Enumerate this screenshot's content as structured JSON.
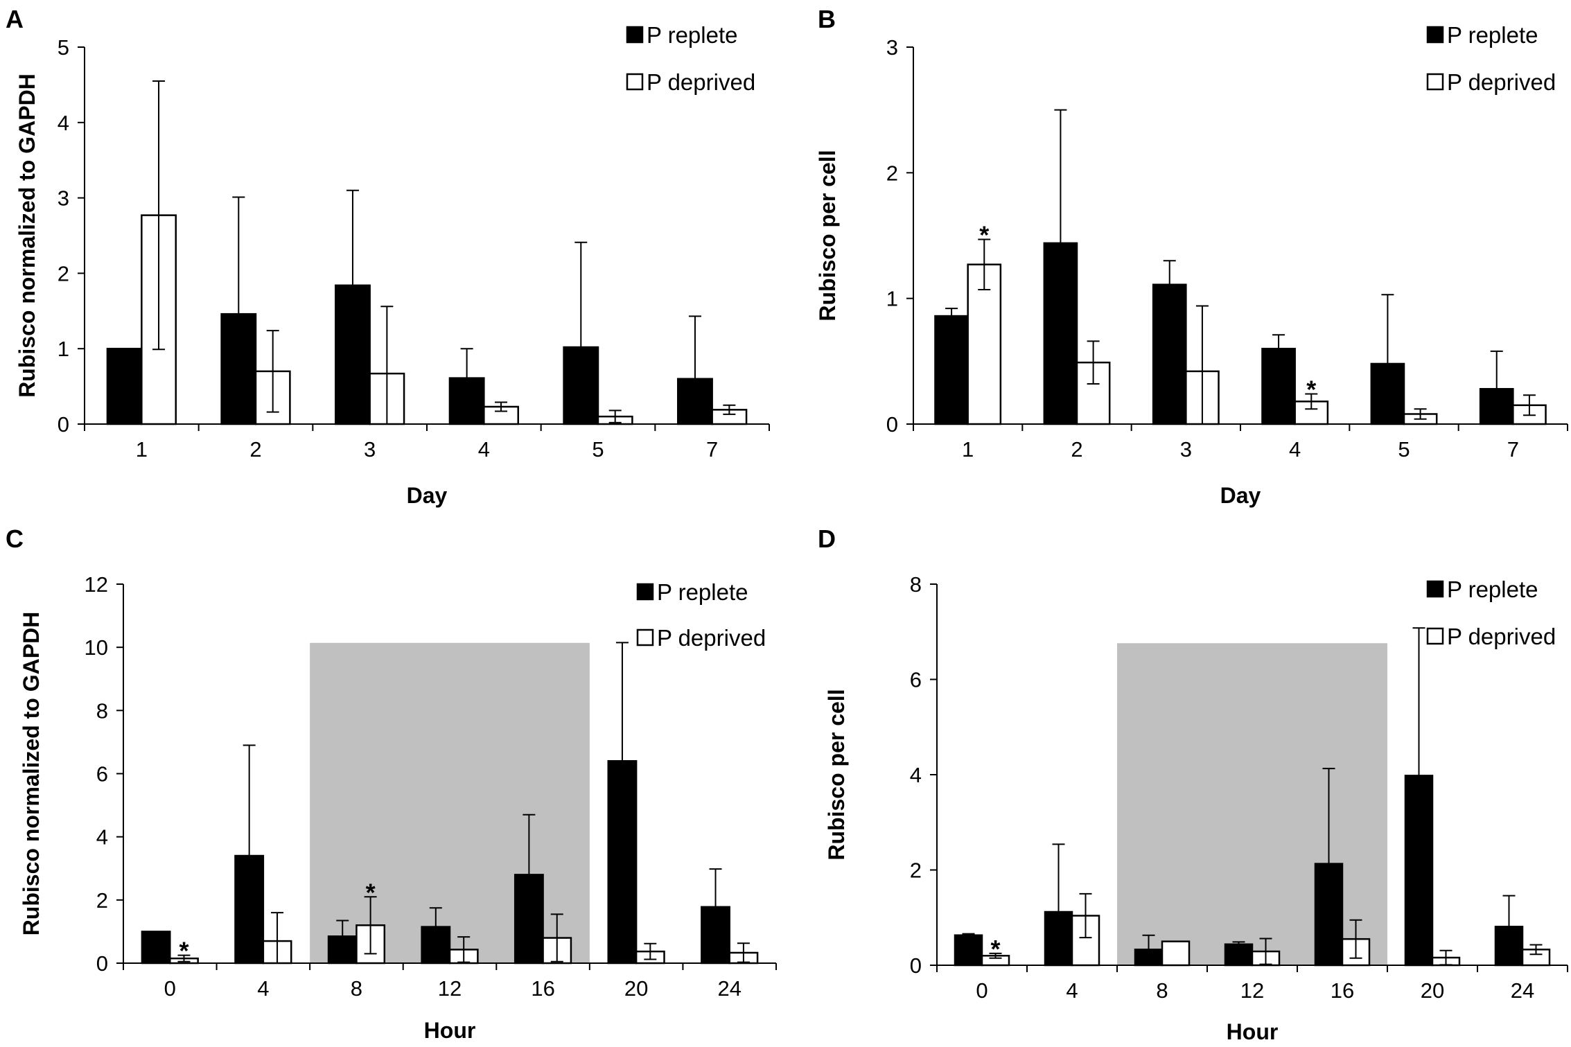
{
  "chart_data": [
    {
      "panel": "A",
      "type": "bar",
      "xlabel": "Day",
      "ylabel": "Rubisco normalized to GAPDH",
      "ylim": [
        0,
        5
      ],
      "yticks": [
        "0",
        "1",
        "2",
        "3",
        "4",
        "5"
      ],
      "categories": [
        "1",
        "2",
        "3",
        "4",
        "5",
        "7"
      ],
      "legend_position": "top-right",
      "shaded_categories": [],
      "series": [
        {
          "name": "P replete",
          "fill": "#000000",
          "values": [
            1.0,
            1.46,
            1.84,
            0.61,
            1.02,
            0.6
          ],
          "errors": [
            0,
            1.55,
            1.26,
            0.39,
            1.39,
            0.83
          ],
          "significant": [
            false,
            false,
            false,
            false,
            false,
            false
          ]
        },
        {
          "name": "P deprived",
          "fill": "#ffffff",
          "values": [
            2.77,
            0.7,
            0.67,
            0.23,
            0.1,
            0.19
          ],
          "errors": [
            1.78,
            0.54,
            0.89,
            0.06,
            0.08,
            0.06
          ],
          "significant": [
            false,
            false,
            false,
            false,
            false,
            false
          ]
        }
      ]
    },
    {
      "panel": "B",
      "type": "bar",
      "xlabel": "Day",
      "ylabel": "Rubisco per cell",
      "ylim": [
        0,
        3
      ],
      "yticks": [
        "0",
        "1",
        "2",
        "3"
      ],
      "categories": [
        "1",
        "2",
        "3",
        "4",
        "5",
        "7"
      ],
      "legend_position": "top-right",
      "shaded_categories": [],
      "series": [
        {
          "name": "P replete",
          "fill": "#000000",
          "values": [
            0.86,
            1.44,
            1.11,
            0.6,
            0.48,
            0.28
          ],
          "errors": [
            0.06,
            1.06,
            0.19,
            0.11,
            0.55,
            0.3
          ],
          "significant": [
            false,
            false,
            false,
            false,
            false,
            false
          ]
        },
        {
          "name": "P deprived",
          "fill": "#ffffff",
          "values": [
            1.27,
            0.49,
            0.42,
            0.18,
            0.08,
            0.15
          ],
          "errors": [
            0.2,
            0.17,
            0.52,
            0.06,
            0.04,
            0.08
          ],
          "significant": [
            true,
            false,
            false,
            true,
            false,
            false
          ]
        }
      ]
    },
    {
      "panel": "C",
      "type": "bar",
      "xlabel": "Hour",
      "ylabel": "Rubisco normalized to GAPDH",
      "ylim": [
        0,
        12
      ],
      "yticks": [
        "0",
        "2",
        "4",
        "6",
        "8",
        "10",
        "12"
      ],
      "categories": [
        "0",
        "4",
        "8",
        "12",
        "16",
        "20",
        "24"
      ],
      "legend_position": "top-right",
      "shaded_categories": [
        "8",
        "12",
        "16"
      ],
      "series": [
        {
          "name": "P replete",
          "fill": "#000000",
          "values": [
            1.0,
            3.4,
            0.85,
            1.15,
            2.8,
            6.4,
            1.78
          ],
          "errors": [
            0,
            3.5,
            0.5,
            0.6,
            1.9,
            3.75,
            1.2
          ],
          "significant": [
            false,
            false,
            false,
            false,
            false,
            false,
            false
          ]
        },
        {
          "name": "P deprived",
          "fill": "#ffffff",
          "values": [
            0.15,
            0.7,
            1.2,
            0.43,
            0.8,
            0.37,
            0.33
          ],
          "errors": [
            0.1,
            0.9,
            0.9,
            0.4,
            0.75,
            0.25,
            0.3
          ],
          "significant": [
            true,
            false,
            true,
            false,
            false,
            false,
            false
          ]
        }
      ]
    },
    {
      "panel": "D",
      "type": "bar",
      "xlabel": "Hour",
      "ylabel": "Rubisco per cell",
      "ylim": [
        0,
        8
      ],
      "yticks": [
        "0",
        "2",
        "4",
        "6",
        "8"
      ],
      "categories": [
        "0",
        "4",
        "8",
        "12",
        "16",
        "20",
        "24"
      ],
      "legend_position": "top-right",
      "shaded_categories": [
        "8",
        "12",
        "16"
      ],
      "series": [
        {
          "name": "P replete",
          "fill": "#000000",
          "values": [
            0.63,
            1.12,
            0.33,
            0.44,
            2.13,
            3.98,
            0.81
          ],
          "errors": [
            0.03,
            1.42,
            0.3,
            0.05,
            2.0,
            3.1,
            0.65
          ],
          "significant": [
            false,
            false,
            false,
            false,
            false,
            false,
            false
          ]
        },
        {
          "name": "P deprived",
          "fill": "#ffffff",
          "values": [
            0.2,
            1.04,
            0.5,
            0.29,
            0.55,
            0.16,
            0.33
          ],
          "errors": [
            0.05,
            0.46,
            0,
            0.27,
            0.4,
            0.15,
            0.1
          ],
          "significant": [
            true,
            false,
            false,
            false,
            false,
            false,
            false
          ]
        }
      ]
    }
  ],
  "style": {
    "bar_stroke": "#000000",
    "shade_color": "#c0c0c0",
    "axis_color": "#000000"
  }
}
